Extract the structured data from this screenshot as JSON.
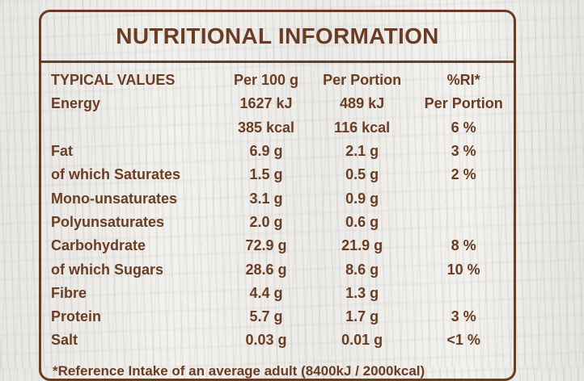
{
  "label": {
    "title": "NUTRITIONAL INFORMATION",
    "headers": [
      "TYPICAL VALUES",
      "Per 100 g",
      "Per Portion",
      "%RI*"
    ],
    "rows": [
      {
        "name": "Energy",
        "per100": "1627 kJ",
        "portion": "489 kJ",
        "ri": "Per Portion"
      },
      {
        "name": "",
        "per100": "385 kcal",
        "portion": "116 kcal",
        "ri": "6 %"
      },
      {
        "name": "Fat",
        "per100": "6.9 g",
        "portion": "2.1 g",
        "ri": "3 %"
      },
      {
        "name": "of which Saturates",
        "per100": "1.5 g",
        "portion": "0.5 g",
        "ri": "2 %"
      },
      {
        "name": "Mono-unsaturates",
        "per100": "3.1 g",
        "portion": "0.9 g",
        "ri": ""
      },
      {
        "name": "Polyunsaturates",
        "per100": "2.0 g",
        "portion": "0.6 g",
        "ri": ""
      },
      {
        "name": "Carbohydrate",
        "per100": "72.9 g",
        "portion": "21.9 g",
        "ri": "8 %"
      },
      {
        "name": "of which Sugars",
        "per100": "28.6 g",
        "portion": "8.6 g",
        "ri": "10 %"
      },
      {
        "name": "Fibre",
        "per100": "4.4 g",
        "portion": "1.3 g",
        "ri": ""
      },
      {
        "name": "Protein",
        "per100": "5.7 g",
        "portion": "1.7 g",
        "ri": "3 %"
      },
      {
        "name": "Salt",
        "per100": "0.03 g",
        "portion": "0.01 g",
        "ri": "<1 %"
      }
    ],
    "footnote": "*Reference Intake of an average adult (8400kJ / 2000kcal)"
  },
  "colors": {
    "ink": "#6a3d22",
    "background": "#efede9"
  }
}
